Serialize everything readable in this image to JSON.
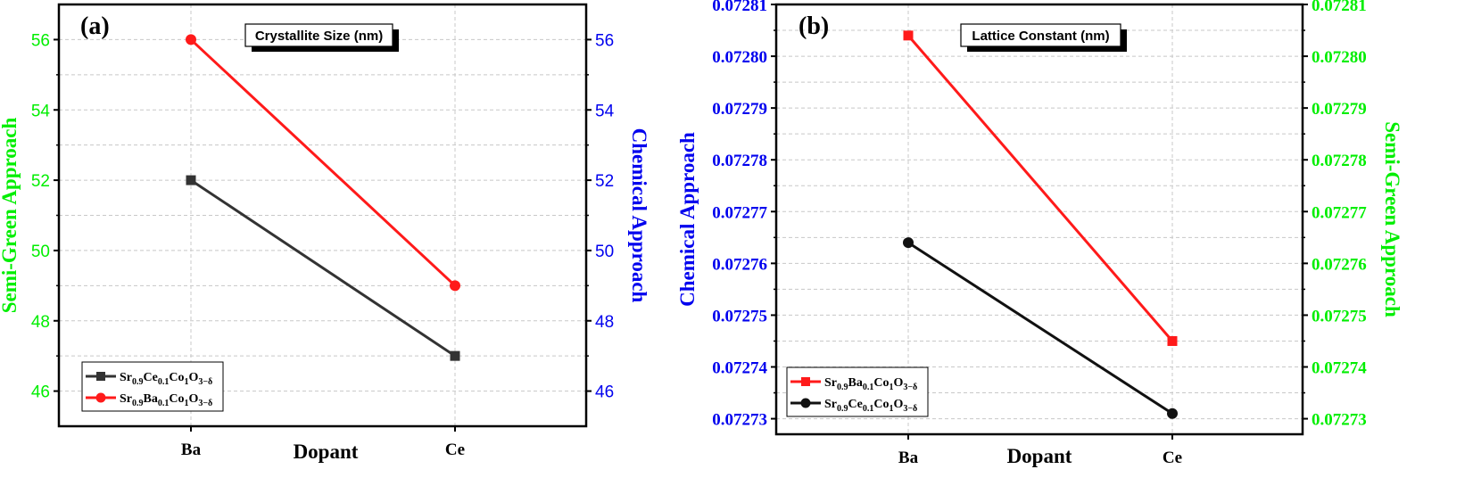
{
  "colors": {
    "green": "#00ee00",
    "blue": "#0000ee",
    "red": "#ff1a1a",
    "black": "#111111",
    "gray": "#404040"
  },
  "chart_data": [
    {
      "panel": "(a)",
      "type": "line",
      "title": "Crystallite Size (nm)",
      "xlabel": "Dopant",
      "ylabel_left": "Semi-Green Approach",
      "ylabel_right": "Chemical Approach",
      "categories": [
        "Ba",
        "Ce"
      ],
      "ylim": [
        45,
        57
      ],
      "left_ticks": [
        "46",
        "48",
        "50",
        "52",
        "54",
        "56"
      ],
      "right_ticks": [
        "46",
        "48",
        "50",
        "52",
        "54",
        "56"
      ],
      "tick_values": [
        46,
        48,
        50,
        52,
        54,
        56
      ],
      "grid": true,
      "legend_position": "bottom-left",
      "series": [
        {
          "base": "Sr",
          "s1": "0.9",
          "mid": "Ce",
          "s2": "0.1",
          "tail": "Co",
          "s3": "1",
          "o": "O",
          "s4": "3−δ",
          "values": [
            52,
            47
          ],
          "color": "#333333",
          "marker": "square"
        },
        {
          "base": "Sr",
          "s1": "0.9",
          "mid": "Ba",
          "s2": "0.1",
          "tail": "Co",
          "s3": "1",
          "o": "O",
          "s4": "3−δ",
          "values": [
            56,
            49
          ],
          "color": "#ff1a1a",
          "marker": "circle"
        }
      ]
    },
    {
      "panel": "(b)",
      "type": "line",
      "title": "Lattice Constant (nm)",
      "xlabel": "Dopant",
      "ylabel_left": "Chemical Approach",
      "ylabel_right": "Semi-Green Approach",
      "categories": [
        "Ba",
        "Ce"
      ],
      "ylim": [
        0.072727,
        0.07281
      ],
      "left_ticks": [
        "0.07273",
        "0.07274",
        "0.07275",
        "0.07276",
        "0.07277",
        "0.07278",
        "0.07279",
        "0.07280",
        "0.07281"
      ],
      "right_ticks": [
        "0.07273",
        "0.07274",
        "0.07275",
        "0.07276",
        "0.07277",
        "0.07278",
        "0.07279",
        "0.07280",
        "0.07281"
      ],
      "tick_values": [
        0.07273,
        0.07274,
        0.07275,
        0.07276,
        0.07277,
        0.07278,
        0.07279,
        0.0728,
        0.07281
      ],
      "grid": true,
      "legend_position": "bottom-left",
      "series": [
        {
          "base": "Sr",
          "s1": "0.9",
          "mid": "Ba",
          "s2": "0.1",
          "tail": "Co",
          "s3": "1",
          "o": "O",
          "s4": "3−δ",
          "values": [
            0.072804,
            0.072745
          ],
          "color": "#ff1a1a",
          "marker": "square"
        },
        {
          "base": "Sr",
          "s1": "0.9",
          "mid": "Ce",
          "s2": "0.1",
          "tail": "Co",
          "s3": "1",
          "o": "O",
          "s4": "3−δ",
          "values": [
            0.072764,
            0.072731
          ],
          "color": "#111111",
          "marker": "circle"
        }
      ]
    }
  ]
}
